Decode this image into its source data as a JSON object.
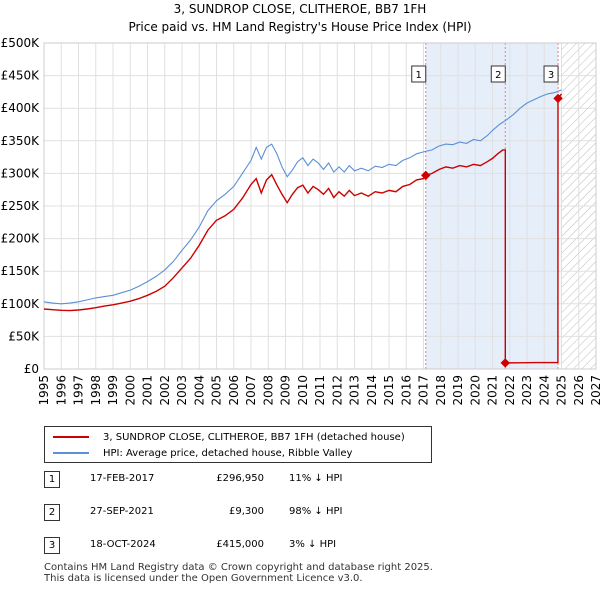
{
  "chart_data": {
    "type": "line",
    "title": "3, SUNDROP CLOSE, CLITHEROE, BB7 1FH",
    "subtitle": "Price paid vs. HM Land Registry's House Price Index (HPI)",
    "xlim": [
      1995,
      2027
    ],
    "ylim": [
      0,
      500000
    ],
    "x_ticks": [
      "1995",
      "1996",
      "1997",
      "1998",
      "1999",
      "2000",
      "2001",
      "2002",
      "2003",
      "2004",
      "2005",
      "2006",
      "2007",
      "2008",
      "2009",
      "2010",
      "2011",
      "2012",
      "2013",
      "2014",
      "2015",
      "2016",
      "2017",
      "2018",
      "2019",
      "2020",
      "2021",
      "2022",
      "2023",
      "2024",
      "2025",
      "2026",
      "2027"
    ],
    "y_ticks": [
      {
        "value": 0,
        "label": "£0"
      },
      {
        "value": 50000,
        "label": "£50K"
      },
      {
        "value": 100000,
        "label": "£100K"
      },
      {
        "value": 150000,
        "label": "£150K"
      },
      {
        "value": 200000,
        "label": "£200K"
      },
      {
        "value": 250000,
        "label": "£250K"
      },
      {
        "value": 300000,
        "label": "£300K"
      },
      {
        "value": 350000,
        "label": "£350K"
      },
      {
        "value": 400000,
        "label": "£400K"
      },
      {
        "value": 450000,
        "label": "£450K"
      },
      {
        "value": 500000,
        "label": "£500K"
      }
    ],
    "shaded_period": [
      2017.13,
      2024.8
    ],
    "hatched_from": 2025.0,
    "series": [
      {
        "name": "3, SUNDROP CLOSE, CLITHEROE, BB7 1FH (detached house)",
        "color": "#cc0000",
        "points": [
          [
            1995.0,
            92000
          ],
          [
            1995.5,
            91000
          ],
          [
            1996.0,
            90000
          ],
          [
            1996.5,
            89500
          ],
          [
            1997.0,
            90500
          ],
          [
            1997.5,
            92000
          ],
          [
            1998.0,
            94000
          ],
          [
            1998.5,
            96500
          ],
          [
            1999.0,
            98500
          ],
          [
            1999.5,
            101000
          ],
          [
            2000.0,
            104000
          ],
          [
            2000.5,
            108000
          ],
          [
            2001.0,
            113000
          ],
          [
            2001.5,
            119000
          ],
          [
            2002.0,
            127000
          ],
          [
            2002.5,
            140000
          ],
          [
            2003.0,
            155000
          ],
          [
            2003.5,
            170000
          ],
          [
            2004.0,
            190000
          ],
          [
            2004.5,
            213000
          ],
          [
            2005.0,
            228000
          ],
          [
            2005.5,
            235000
          ],
          [
            2006.0,
            245000
          ],
          [
            2006.5,
            262000
          ],
          [
            2007.0,
            283000
          ],
          [
            2007.3,
            292000
          ],
          [
            2007.6,
            270000
          ],
          [
            2007.9,
            290000
          ],
          [
            2008.2,
            298000
          ],
          [
            2008.5,
            282000
          ],
          [
            2008.8,
            268000
          ],
          [
            2009.1,
            255000
          ],
          [
            2009.4,
            268000
          ],
          [
            2009.7,
            278000
          ],
          [
            2010.0,
            282000
          ],
          [
            2010.3,
            270000
          ],
          [
            2010.6,
            280000
          ],
          [
            2010.9,
            275000
          ],
          [
            2011.2,
            268000
          ],
          [
            2011.5,
            277000
          ],
          [
            2011.8,
            263000
          ],
          [
            2012.1,
            272000
          ],
          [
            2012.4,
            265000
          ],
          [
            2012.7,
            274000
          ],
          [
            2013.0,
            266000
          ],
          [
            2013.4,
            270000
          ],
          [
            2013.8,
            265000
          ],
          [
            2014.2,
            272000
          ],
          [
            2014.6,
            270000
          ],
          [
            2015.0,
            274000
          ],
          [
            2015.4,
            272000
          ],
          [
            2015.8,
            280000
          ],
          [
            2016.2,
            283000
          ],
          [
            2016.6,
            290000
          ],
          [
            2017.0,
            292000
          ],
          [
            2017.13,
            296950
          ],
          [
            2017.5,
            300000
          ],
          [
            2017.9,
            306000
          ],
          [
            2018.3,
            310000
          ],
          [
            2018.7,
            308000
          ],
          [
            2019.1,
            312000
          ],
          [
            2019.5,
            310000
          ],
          [
            2019.9,
            314000
          ],
          [
            2020.3,
            312000
          ],
          [
            2020.7,
            318000
          ],
          [
            2021.0,
            323000
          ],
          [
            2021.3,
            330000
          ],
          [
            2021.6,
            336000
          ],
          [
            2021.74,
            336000
          ],
          [
            2021.74,
            9300
          ],
          [
            2022.5,
            9500
          ],
          [
            2023.5,
            9800
          ],
          [
            2024.79,
            10000
          ],
          [
            2024.8,
            415000
          ],
          [
            2025.0,
            422000
          ]
        ]
      },
      {
        "name": "HPI: Average price, detached house, Ribble Valley",
        "color": "#5b8fd6",
        "points": [
          [
            1995.0,
            103000
          ],
          [
            1995.5,
            101000
          ],
          [
            1996.0,
            100000
          ],
          [
            1996.5,
            101000
          ],
          [
            1997.0,
            103000
          ],
          [
            1997.5,
            106000
          ],
          [
            1998.0,
            109000
          ],
          [
            1998.5,
            111000
          ],
          [
            1999.0,
            113000
          ],
          [
            1999.5,
            117000
          ],
          [
            2000.0,
            121000
          ],
          [
            2000.5,
            127000
          ],
          [
            2001.0,
            134000
          ],
          [
            2001.5,
            142000
          ],
          [
            2002.0,
            152000
          ],
          [
            2002.5,
            165000
          ],
          [
            2003.0,
            182000
          ],
          [
            2003.5,
            198000
          ],
          [
            2004.0,
            218000
          ],
          [
            2004.5,
            243000
          ],
          [
            2005.0,
            258000
          ],
          [
            2005.5,
            268000
          ],
          [
            2006.0,
            280000
          ],
          [
            2006.5,
            300000
          ],
          [
            2007.0,
            320000
          ],
          [
            2007.3,
            340000
          ],
          [
            2007.6,
            322000
          ],
          [
            2007.9,
            340000
          ],
          [
            2008.2,
            345000
          ],
          [
            2008.5,
            330000
          ],
          [
            2008.8,
            310000
          ],
          [
            2009.1,
            295000
          ],
          [
            2009.4,
            305000
          ],
          [
            2009.7,
            318000
          ],
          [
            2010.0,
            324000
          ],
          [
            2010.3,
            312000
          ],
          [
            2010.6,
            322000
          ],
          [
            2010.9,
            316000
          ],
          [
            2011.2,
            306000
          ],
          [
            2011.5,
            316000
          ],
          [
            2011.8,
            302000
          ],
          [
            2012.1,
            310000
          ],
          [
            2012.4,
            302000
          ],
          [
            2012.7,
            312000
          ],
          [
            2013.0,
            304000
          ],
          [
            2013.4,
            308000
          ],
          [
            2013.8,
            304000
          ],
          [
            2014.2,
            311000
          ],
          [
            2014.6,
            309000
          ],
          [
            2015.0,
            314000
          ],
          [
            2015.4,
            312000
          ],
          [
            2015.8,
            320000
          ],
          [
            2016.2,
            324000
          ],
          [
            2016.6,
            330000
          ],
          [
            2017.0,
            333000
          ],
          [
            2017.5,
            336000
          ],
          [
            2017.9,
            342000
          ],
          [
            2018.3,
            345000
          ],
          [
            2018.7,
            344000
          ],
          [
            2019.1,
            348000
          ],
          [
            2019.5,
            346000
          ],
          [
            2019.9,
            352000
          ],
          [
            2020.3,
            350000
          ],
          [
            2020.7,
            358000
          ],
          [
            2021.0,
            366000
          ],
          [
            2021.4,
            375000
          ],
          [
            2021.8,
            382000
          ],
          [
            2022.2,
            390000
          ],
          [
            2022.6,
            400000
          ],
          [
            2023.0,
            408000
          ],
          [
            2023.4,
            413000
          ],
          [
            2023.8,
            418000
          ],
          [
            2024.2,
            422000
          ],
          [
            2024.6,
            424000
          ],
          [
            2025.0,
            428000
          ]
        ]
      }
    ],
    "markers": [
      {
        "label": "1",
        "x": 2017.13,
        "y": 296950
      },
      {
        "label": "2",
        "x": 2021.74,
        "y": 9300
      },
      {
        "label": "3",
        "x": 2024.8,
        "y": 415000
      }
    ]
  },
  "legend": {
    "items": [
      {
        "label": "3, SUNDROP CLOSE, CLITHEROE, BB7 1FH (detached house)",
        "color": "#cc0000"
      },
      {
        "label": "HPI: Average price, detached house, Ribble Valley",
        "color": "#5b8fd6"
      }
    ]
  },
  "sales": [
    {
      "num": "1",
      "date": "17-FEB-2017",
      "price": "£296,950",
      "hpi": "11% ↓ HPI"
    },
    {
      "num": "2",
      "date": "27-SEP-2021",
      "price": "£9,300",
      "hpi": "98% ↓ HPI"
    },
    {
      "num": "3",
      "date": "18-OCT-2024",
      "price": "£415,000",
      "hpi": "3% ↓ HPI"
    }
  ],
  "footer": {
    "line1": "Contains HM Land Registry data © Crown copyright and database right 2025.",
    "line2": "This data is licensed under the Open Government Licence v3.0."
  }
}
